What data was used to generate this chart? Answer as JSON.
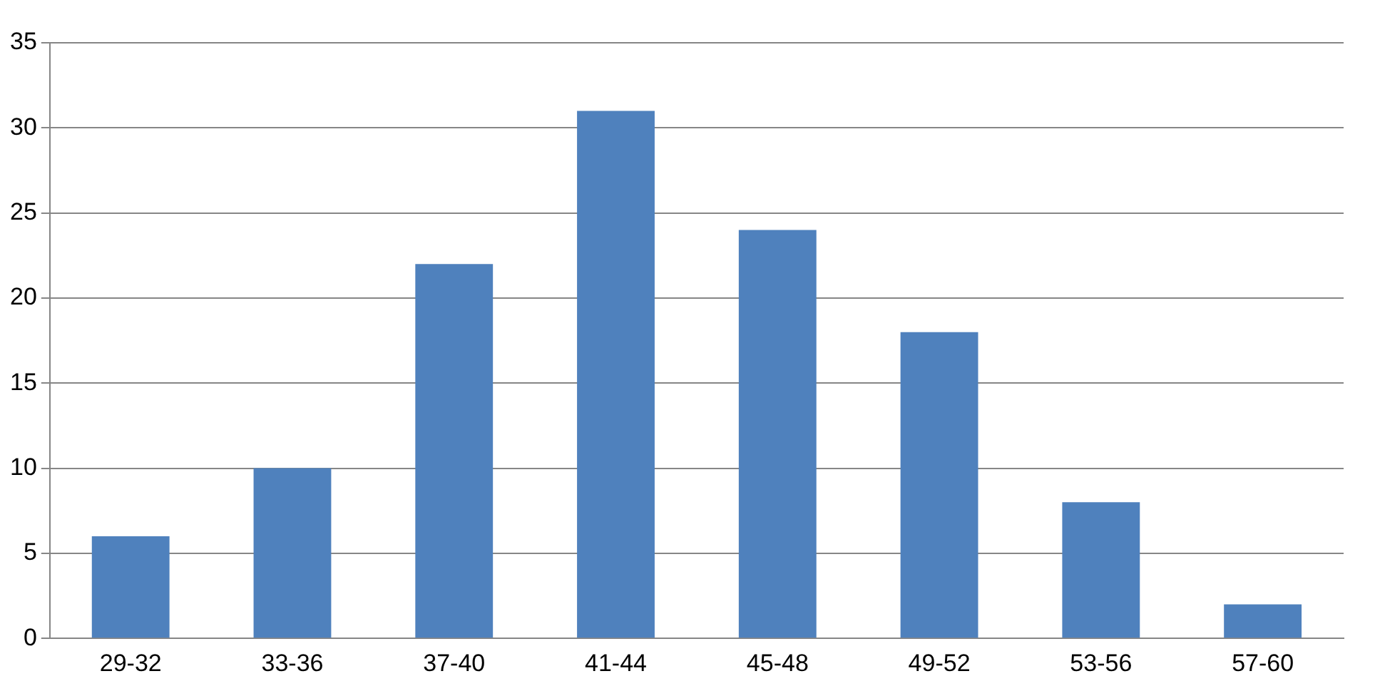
{
  "chart_data": {
    "type": "bar",
    "categories": [
      "29-32",
      "33-36",
      "37-40",
      "41-44",
      "45-48",
      "49-52",
      "53-56",
      "57-60"
    ],
    "values": [
      6,
      10,
      22,
      31,
      24,
      18,
      8,
      2
    ],
    "color": "#4f81bd",
    "ylim": [
      0,
      35
    ],
    "yticks": [
      0,
      5,
      10,
      15,
      20,
      25,
      30,
      35
    ],
    "grid": "y",
    "legend": false
  }
}
